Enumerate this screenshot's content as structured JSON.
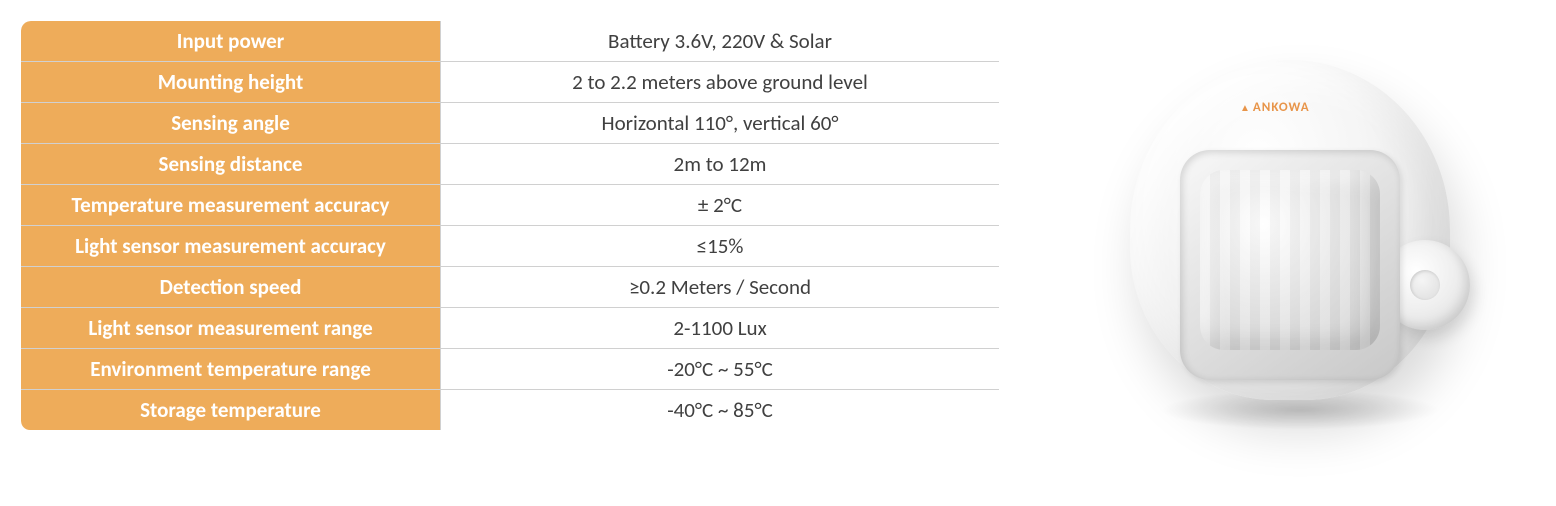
{
  "table": {
    "label_bg_color": "#eeac5a",
    "border_color": "#d0d0d0",
    "label_text_color": "#ffffff",
    "value_text_color": "#404040",
    "font_size": 21,
    "rows": [
      {
        "label": "Input power",
        "value": "Battery 3.6V, 220V & Solar"
      },
      {
        "label": "Mounting height",
        "value": "2 to 2.2 meters above ground level"
      },
      {
        "label": "Sensing angle",
        "value": "Horizontal 110°, vertical 60°"
      },
      {
        "label": "Sensing distance",
        "value": "2m to 12m"
      },
      {
        "label": "Temperature measurement accuracy",
        "value": "± 2°C"
      },
      {
        "label": "Light sensor measurement accuracy",
        "value": "≤15%"
      },
      {
        "label": "Detection speed",
        "value": "≥0.2 Meters / Second"
      },
      {
        "label": "Light sensor measurement range",
        "value": "2-1100 Lux"
      },
      {
        "label": "Environment temperature range",
        "value": "-20°C ~ 55°C"
      },
      {
        "label": "Storage temperature",
        "value": "-40°C ~ 85°C"
      }
    ]
  },
  "product": {
    "brand": "ANKOWA"
  }
}
